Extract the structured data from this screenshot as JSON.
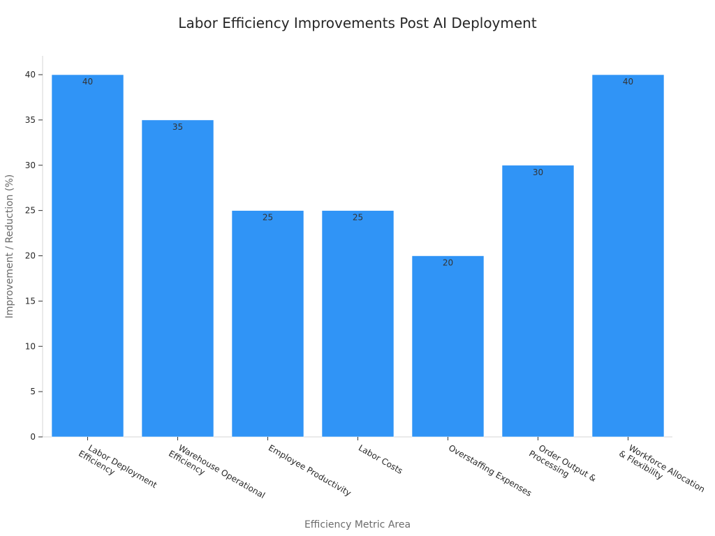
{
  "chart_data": {
    "type": "bar",
    "title": "Labor Efficiency Improvements Post AI Deployment",
    "xlabel": "Efficiency Metric Area",
    "ylabel": "Improvement / Reduction (%)",
    "ylim": [
      0,
      42
    ],
    "yticks": [
      0,
      5,
      10,
      15,
      20,
      25,
      30,
      35,
      40
    ],
    "categories": [
      [
        "Labor Deployment",
        "Efficiency"
      ],
      [
        "Warehouse Operational",
        "Efficiency"
      ],
      [
        "Employee Productivity"
      ],
      [
        "Labor Costs"
      ],
      [
        "Overstaffing Expenses"
      ],
      [
        "Order Output &",
        "Processing"
      ],
      [
        "Workforce Allocation",
        "& Flexibility"
      ]
    ],
    "values": [
      40,
      35,
      25,
      25,
      20,
      30,
      40
    ],
    "bar_color": "#3094f6",
    "grid": false,
    "legend": "none"
  }
}
